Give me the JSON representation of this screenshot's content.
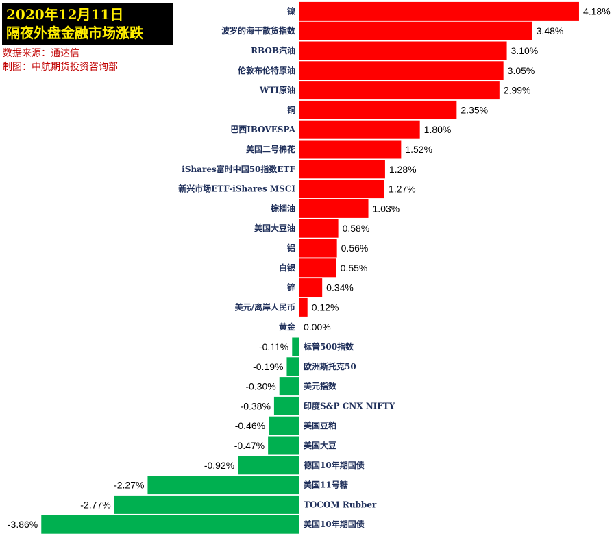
{
  "header": {
    "date": "2020年12月11日",
    "title": "隔夜外盘金融市场涨跌",
    "source": "数据来源：通达信",
    "maker": "制图：中航期货投资咨询部"
  },
  "colors": {
    "positive": "#ff0000",
    "negative": "#00b050",
    "title_bg": "#000000",
    "title_text": "#ffee00",
    "source_text": "#c00000"
  },
  "chart_data": {
    "type": "bar",
    "orientation": "horizontal",
    "categories": [
      "镍",
      "波罗的海干散货指数",
      "RBOB汽油",
      "伦敦布伦特原油",
      "WTI原油",
      "铜",
      "巴西IBOVESPA",
      "美国二号棉花",
      "iShares富时中国50指数ETF",
      "新兴市场ETF-iShares MSCI",
      "棕榈油",
      "美国大豆油",
      "铝",
      "白银",
      "锌",
      "美元/离岸人民币",
      "黄金",
      "标普500指数",
      "欧洲斯托克50",
      "美元指数",
      "印度S&P CNX NIFTY",
      "美国豆粕",
      "美国大豆",
      "德国10年期国债",
      "美国11号糖",
      "TOCOM Rubber",
      "美国10年期国债"
    ],
    "values": [
      4.18,
      3.48,
      3.1,
      3.05,
      2.99,
      2.35,
      1.8,
      1.52,
      1.28,
      1.27,
      1.03,
      0.58,
      0.56,
      0.55,
      0.34,
      0.12,
      0.0,
      -0.11,
      -0.19,
      -0.3,
      -0.38,
      -0.46,
      -0.47,
      -0.92,
      -2.27,
      -2.77,
      -3.86
    ],
    "labels": [
      "4.18%",
      "3.48%",
      "3.10%",
      "3.05%",
      "2.99%",
      "2.35%",
      "1.80%",
      "1.52%",
      "1.28%",
      "1.27%",
      "1.03%",
      "0.58%",
      "0.56%",
      "0.55%",
      "0.34%",
      "0.12%",
      "0.00%",
      "-0.11%",
      "-0.19%",
      "-0.30%",
      "-0.38%",
      "-0.46%",
      "-0.47%",
      "-0.92%",
      "-2.27%",
      "-2.77%",
      "-3.86%"
    ],
    "title": "隔夜外盘金融市场涨跌",
    "xlabel": "",
    "ylabel": "",
    "grid": false,
    "legend": "none"
  }
}
